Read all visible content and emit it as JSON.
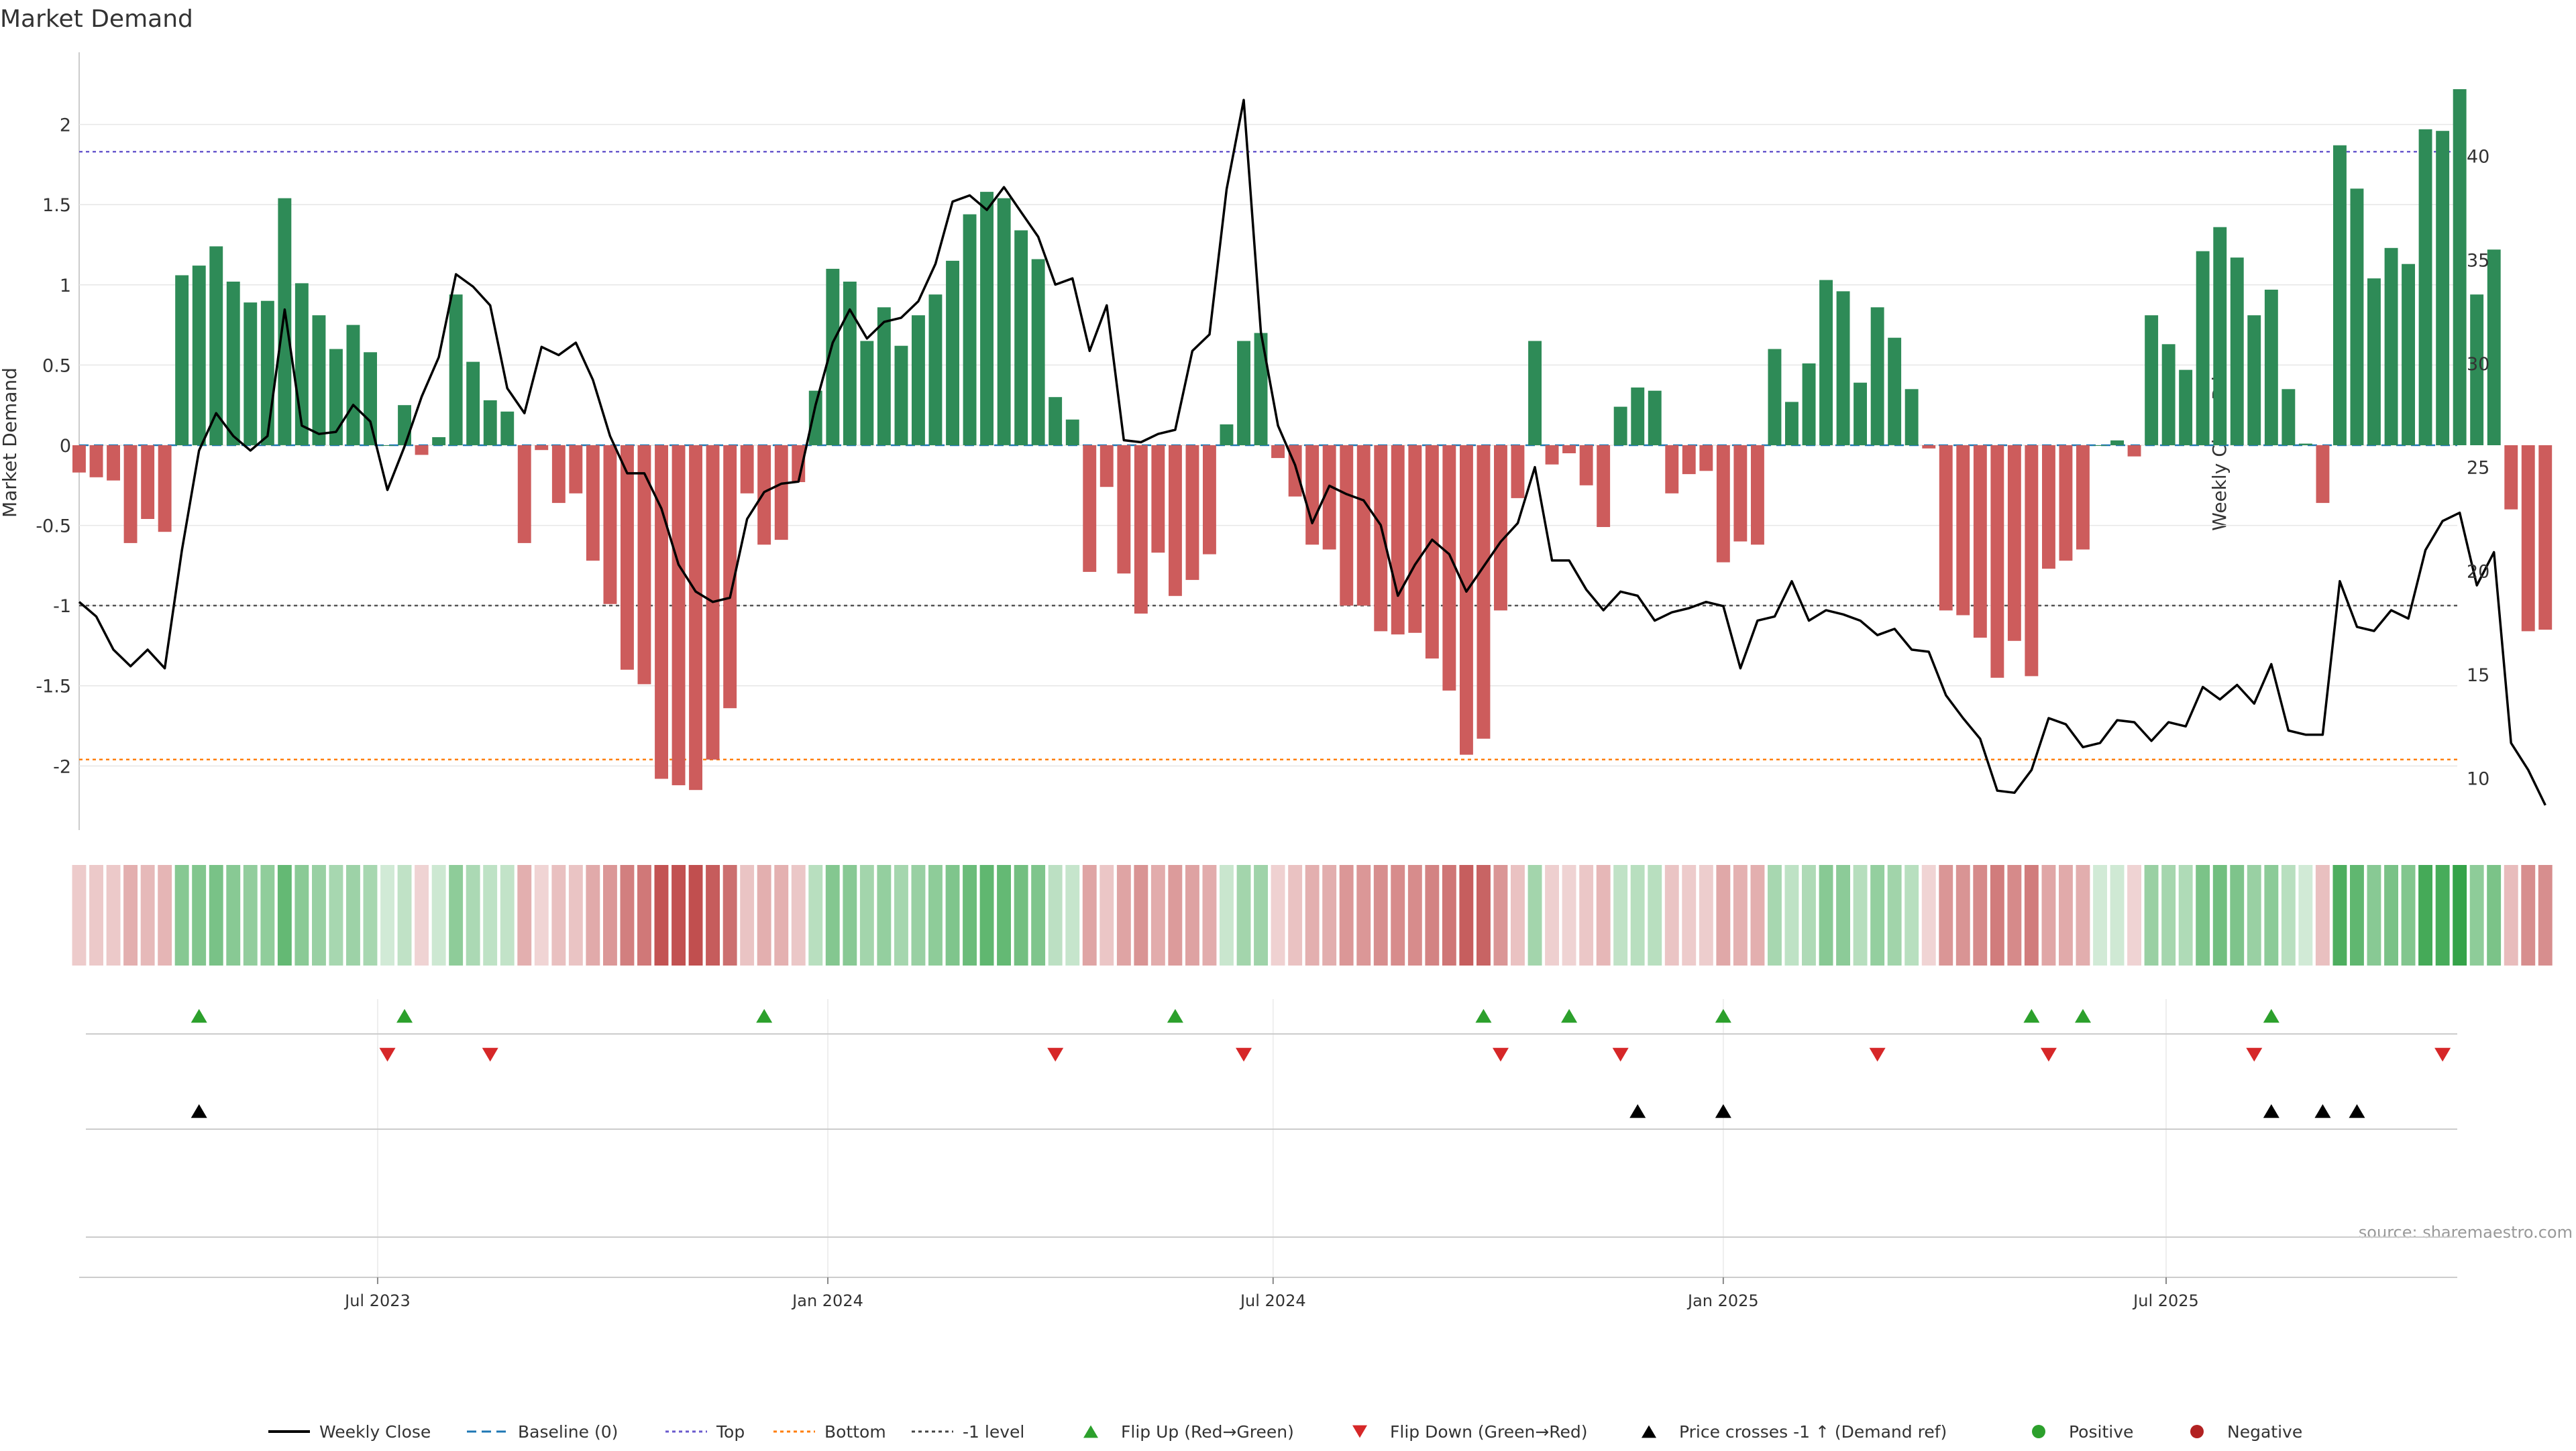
{
  "chart_data": {
    "type": "bar",
    "title": "Market Demand",
    "ylabel": "Market Demand",
    "y2label": "Weekly Close Price",
    "ylim": [
      -2.4,
      2.45
    ],
    "y2lim": [
      7.5,
      45
    ],
    "yticks": [
      -2,
      -1.5,
      -1,
      -0.5,
      0,
      0.5,
      1,
      1.5,
      2
    ],
    "y2ticks": [
      10,
      15,
      20,
      25,
      30,
      35,
      40
    ],
    "levels": {
      "top": 1.83,
      "bottom": -1.96,
      "minus_one": -1,
      "baseline": 0
    },
    "xlim": [
      "2023-03-01",
      "2025-10-28"
    ],
    "xticks": [
      {
        "date": "2023-07-01",
        "label": "Jul 2023"
      },
      {
        "date": "2024-01-01",
        "label": "Jan 2024"
      },
      {
        "date": "2024-07-01",
        "label": "Jul 2024"
      },
      {
        "date": "2025-01-01",
        "label": "Jan 2025"
      },
      {
        "date": "2025-07-01",
        "label": "Jul 2025"
      }
    ],
    "start_date": "2023-03-01",
    "week_step_days": 7,
    "series": [
      {
        "name": "Market Demand",
        "values": [
          -0.17,
          -0.2,
          -0.22,
          -0.61,
          -0.46,
          -0.54,
          1.06,
          1.12,
          1.24,
          1.02,
          0.89,
          0.9,
          1.54,
          1.01,
          0.81,
          0.6,
          0.75,
          0.58,
          0.0,
          0.25,
          -0.06,
          0.05,
          0.94,
          0.52,
          0.28,
          0.21,
          -0.61,
          -0.03,
          -0.36,
          -0.3,
          -0.72,
          -0.99,
          -1.4,
          -1.49,
          -2.08,
          -2.12,
          -2.15,
          -1.96,
          -1.64,
          -0.3,
          -0.62,
          -0.59,
          -0.23,
          0.34,
          1.1,
          1.02,
          0.65,
          0.86,
          0.62,
          0.81,
          0.94,
          1.15,
          1.44,
          1.58,
          1.54,
          1.34,
          1.16,
          0.3,
          0.16,
          -0.79,
          -0.26,
          -0.8,
          -1.05,
          -0.67,
          -0.94,
          -0.84,
          -0.68,
          0.13,
          0.65,
          0.7,
          -0.08,
          -0.32,
          -0.62,
          -0.65,
          -1.0,
          -1.0,
          -1.16,
          -1.18,
          -1.17,
          -1.33,
          -1.53,
          -1.93,
          -1.83,
          -1.03,
          -0.33,
          0.65,
          -0.12,
          -0.05,
          -0.25,
          -0.51,
          0.24,
          0.36,
          0.34,
          -0.3,
          -0.18,
          -0.16,
          -0.73,
          -0.6,
          -0.62,
          0.6,
          0.27,
          0.51,
          1.03,
          0.96,
          0.39,
          0.86,
          0.67,
          0.35,
          -0.02,
          -1.03,
          -1.06,
          -1.2,
          -1.45,
          -1.22,
          -1.44,
          -0.77,
          -0.72,
          -0.65,
          0.0,
          0.03,
          -0.07,
          0.81,
          0.63,
          0.47,
          1.21,
          1.36,
          1.17,
          0.81,
          0.97,
          0.35,
          0.01,
          -0.36,
          1.87,
          1.6,
          1.04,
          1.23,
          1.13,
          1.97,
          1.96,
          2.22,
          0.94,
          1.22,
          -0.4,
          -1.16,
          -1.15
        ]
      },
      {
        "name": "Weekly Close",
        "values": [
          18.5,
          17.8,
          16.2,
          15.4,
          16.2,
          15.3,
          21.0,
          25.8,
          27.6,
          26.5,
          25.8,
          26.5,
          32.6,
          27.0,
          26.6,
          26.7,
          28.0,
          27.2,
          23.9,
          26.0,
          28.4,
          30.3,
          34.3,
          33.7,
          32.8,
          28.8,
          27.6,
          30.8,
          30.4,
          31.0,
          29.2,
          26.5,
          24.7,
          24.7,
          23.0,
          20.3,
          19.0,
          18.5,
          18.7,
          22.5,
          23.8,
          24.2,
          24.3,
          28.0,
          31.0,
          32.6,
          31.2,
          32.0,
          32.2,
          33.0,
          34.8,
          37.8,
          38.1,
          37.4,
          38.5,
          37.3,
          36.1,
          33.8,
          34.1,
          30.6,
          32.8,
          26.3,
          26.2,
          26.6,
          26.8,
          30.6,
          31.4,
          38.4,
          42.7,
          31.5,
          27.0,
          25.1,
          22.3,
          24.1,
          23.7,
          23.4,
          22.2,
          18.8,
          20.3,
          21.5,
          20.8,
          19.0,
          20.2,
          21.4,
          22.3,
          25.0,
          20.5,
          20.5,
          19.1,
          18.1,
          19.0,
          18.8,
          17.6,
          18.0,
          18.2,
          18.5,
          18.3,
          15.3,
          17.6,
          17.8,
          19.5,
          17.6,
          18.1,
          17.9,
          17.6,
          16.9,
          17.2,
          16.2,
          16.1,
          14.0,
          12.9,
          11.9,
          9.4,
          9.3,
          10.4,
          12.9,
          12.6,
          11.5,
          11.7,
          12.8,
          12.7,
          11.8,
          12.7,
          12.5,
          14.4,
          13.8,
          14.5,
          13.6,
          15.5,
          12.3,
          12.1,
          12.1,
          19.5,
          17.3,
          17.1,
          18.1,
          17.7,
          21.0,
          22.4,
          22.8,
          19.3,
          20.9,
          11.7,
          10.4,
          8.7
        ]
      }
    ],
    "heat_strip": "Demand intensity",
    "markers": {
      "flip_up": [
        "2023-04-19",
        "2023-07-12",
        "2023-12-06",
        "2024-05-22",
        "2024-09-25",
        "2024-10-30",
        "2025-01-01",
        "2025-05-07",
        "2025-05-28",
        "2025-08-13"
      ],
      "flip_down": [
        "2023-07-05",
        "2023-08-16",
        "2024-04-03",
        "2024-06-19",
        "2024-10-02",
        "2024-11-20",
        "2025-03-05",
        "2025-05-14",
        "2025-08-06",
        "2025-10-22"
      ],
      "price_cross": [
        "2023-04-19",
        "2024-11-27",
        "2025-01-01",
        "2025-08-13",
        "2025-09-03",
        "2025-09-17"
      ]
    },
    "source": "source: sharemaestro.com",
    "legend_position": "bottom",
    "legend": [
      {
        "key": "weekly_close",
        "label": "Weekly Close",
        "color": "#000000",
        "kind": "line"
      },
      {
        "key": "baseline",
        "label": "Baseline (0)",
        "color": "#1f77b4",
        "kind": "dash"
      },
      {
        "key": "top",
        "label": "Top",
        "color": "#6a5acd",
        "kind": "dot"
      },
      {
        "key": "bottom",
        "label": "Bottom",
        "color": "#ff7f0e",
        "kind": "dot"
      },
      {
        "key": "minus_one",
        "label": "-1 level",
        "color": "#444444",
        "kind": "dot"
      },
      {
        "key": "flip_up",
        "label": "Flip Up (Red→Green)",
        "color": "#2ca02c",
        "kind": "tri-up"
      },
      {
        "key": "flip_down",
        "label": "Flip Down (Green→Red)",
        "color": "#d62728",
        "kind": "tri-down"
      },
      {
        "key": "price_cross",
        "label": "Price crosses -1 ↑ (Demand ref)",
        "color": "#000000",
        "kind": "tri-up"
      },
      {
        "key": "positive",
        "label": "Positive",
        "color": "#2ca02c",
        "kind": "circle"
      },
      {
        "key": "negative",
        "label": "Negative",
        "color": "#b22222",
        "kind": "circle"
      }
    ],
    "colors": {
      "positive_bar": "#2e8b57",
      "negative_bar": "#cd5c5c",
      "price_line": "#000000",
      "grid": "#e6e6e6",
      "axis": "#cccccc"
    }
  }
}
